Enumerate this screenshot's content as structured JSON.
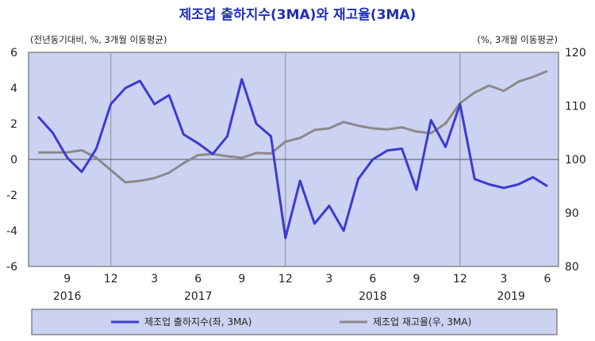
{
  "chart_data": {
    "type": "line",
    "title": "제조업 출하지수(3MA)와 재고율(3MA)",
    "left_unit": "(전년동기대비,  %, 3개월  이동평균)",
    "right_unit": "(%, 3개월  이동평균)",
    "left_axis": {
      "min": -6,
      "max": 6,
      "ticks": [
        "6",
        "4",
        "2",
        "0",
        "-2",
        "-4",
        "-6"
      ]
    },
    "right_axis": {
      "min": 80,
      "max": 120,
      "ticks": [
        "120",
        "110",
        "100",
        "90",
        "80"
      ]
    },
    "x_tick_labels": [
      {
        "index": 2,
        "label": "9"
      },
      {
        "index": 5,
        "label": "12"
      },
      {
        "index": 8,
        "label": "3"
      },
      {
        "index": 11,
        "label": "6"
      },
      {
        "index": 14,
        "label": "9"
      },
      {
        "index": 17,
        "label": "12"
      },
      {
        "index": 20,
        "label": "3"
      },
      {
        "index": 23,
        "label": "6"
      },
      {
        "index": 26,
        "label": "9"
      },
      {
        "index": 29,
        "label": "12"
      },
      {
        "index": 32,
        "label": "3"
      },
      {
        "index": 35,
        "label": "6"
      }
    ],
    "year_labels": [
      {
        "index": 2,
        "label": "2016"
      },
      {
        "index": 11,
        "label": "2017"
      },
      {
        "index": 23,
        "label": "2018"
      },
      {
        "index": 32.5,
        "label": "2019"
      }
    ],
    "vertical_grid_at_index": [
      5,
      17,
      29
    ],
    "series": [
      {
        "name": "제조업 출하지수(좌,  3MA)",
        "axis": "left",
        "color": "#3b3bcf",
        "values": [
          2.4,
          1.5,
          0.1,
          -0.7,
          0.6,
          3.1,
          4.0,
          4.4,
          3.1,
          3.6,
          1.4,
          0.9,
          0.3,
          1.3,
          4.5,
          2.0,
          1.3,
          -4.4,
          -1.2,
          -3.6,
          -2.6,
          -4.0,
          -1.1,
          0.0,
          0.5,
          0.6,
          -1.7,
          2.2,
          0.7,
          3.1,
          -1.1,
          -1.4,
          -1.6,
          -1.4,
          -1.0,
          -1.5
        ]
      },
      {
        "name": "제조업  재고율(우,  3MA)",
        "axis": "right",
        "color": "#8a8a8a",
        "values": [
          101.3,
          101.3,
          101.3,
          101.7,
          100.3,
          98.0,
          95.7,
          96.0,
          96.5,
          97.5,
          99.3,
          100.8,
          101.0,
          100.6,
          100.3,
          101.2,
          101.1,
          103.3,
          104.0,
          105.5,
          105.8,
          107.0,
          106.3,
          105.8,
          105.6,
          106.0,
          105.2,
          104.9,
          106.7,
          110.5,
          112.5,
          113.8,
          112.8,
          114.5,
          115.4,
          116.5
        ]
      }
    ],
    "legend_position": "bottom"
  }
}
